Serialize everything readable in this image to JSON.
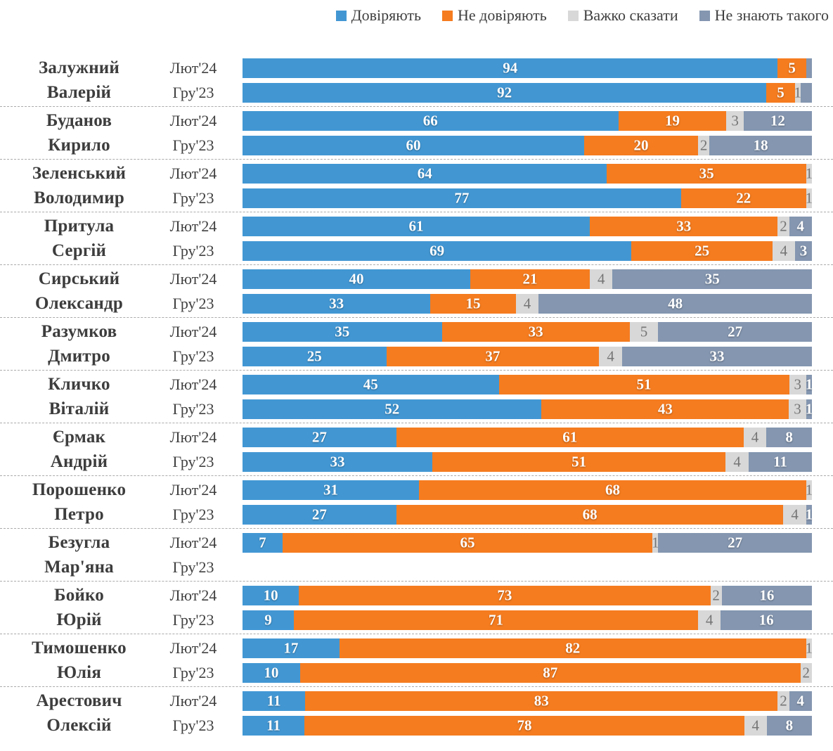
{
  "legend": {
    "items": [
      {
        "key": "trust",
        "label": "Довіряють",
        "color": "#4297d3"
      },
      {
        "key": "distrust",
        "label": "Не довіряють",
        "color": "#f57c1f"
      },
      {
        "key": "hard-to-say",
        "label": "Важко сказати",
        "color": "#d8d8d8"
      },
      {
        "key": "dont-know",
        "label": "Не знають такого",
        "color": "#8496b0"
      }
    ],
    "position": "top-right"
  },
  "periods": [
    "Лют'24",
    "Гру'23"
  ],
  "chart_data": {
    "type": "bar",
    "orientation": "horizontal",
    "stacked": true,
    "percent_stacked": true,
    "xlim": [
      0,
      100
    ],
    "grid": false,
    "series_names": [
      "Довіряють",
      "Не довіряють",
      "Важко сказати",
      "Не знають такого"
    ],
    "series_colors": [
      "#4297d3",
      "#f57c1f",
      "#d8d8d8",
      "#8496b0"
    ],
    "label_color_on_gray": "#757575",
    "people": [
      {
        "surname": "Залужний",
        "firstname": "Валерій",
        "rows": [
          {
            "period": "Лют'24",
            "values": [
              94,
              5,
              0,
              1
            ],
            "labels": [
              "94",
              "5",
              "",
              ""
            ]
          },
          {
            "period": "Гру'23",
            "values": [
              92,
              5,
              1,
              2
            ],
            "labels": [
              "92",
              "5",
              "1",
              ""
            ]
          }
        ]
      },
      {
        "surname": "Буданов",
        "firstname": "Кирило",
        "rows": [
          {
            "period": "Лют'24",
            "values": [
              66,
              19,
              3,
              12
            ],
            "labels": [
              "66",
              "19",
              "3",
              "12"
            ]
          },
          {
            "period": "Гру'23",
            "values": [
              60,
              20,
              2,
              18
            ],
            "labels": [
              "60",
              "20",
              "2",
              "18"
            ]
          }
        ]
      },
      {
        "surname": "Зеленський",
        "firstname": "Володимир",
        "rows": [
          {
            "period": "Лют'24",
            "values": [
              64,
              35,
              1,
              0
            ],
            "labels": [
              "64",
              "35",
              "1",
              ""
            ]
          },
          {
            "period": "Гру'23",
            "values": [
              77,
              22,
              1,
              0
            ],
            "labels": [
              "77",
              "22",
              "1",
              ""
            ]
          }
        ]
      },
      {
        "surname": "Притула",
        "firstname": "Сергій",
        "rows": [
          {
            "period": "Лют'24",
            "values": [
              61,
              33,
              2,
              4
            ],
            "labels": [
              "61",
              "33",
              "2",
              "4"
            ]
          },
          {
            "period": "Гру'23",
            "values": [
              69,
              25,
              4,
              3
            ],
            "labels": [
              "69",
              "25",
              "4",
              "3"
            ]
          }
        ]
      },
      {
        "surname": "Сирський",
        "firstname": "Олександр",
        "rows": [
          {
            "period": "Лют'24",
            "values": [
              40,
              21,
              4,
              35
            ],
            "labels": [
              "40",
              "21",
              "4",
              "35"
            ]
          },
          {
            "period": "Гру'23",
            "values": [
              33,
              15,
              4,
              48
            ],
            "labels": [
              "33",
              "15",
              "4",
              "48"
            ]
          }
        ]
      },
      {
        "surname": "Разумков",
        "firstname": "Дмитро",
        "rows": [
          {
            "period": "Лют'24",
            "values": [
              35,
              33,
              5,
              27
            ],
            "labels": [
              "35",
              "33",
              "5",
              "27"
            ]
          },
          {
            "period": "Гру'23",
            "values": [
              25,
              37,
              4,
              33
            ],
            "labels": [
              "25",
              "37",
              "4",
              "33"
            ]
          }
        ]
      },
      {
        "surname": "Кличко",
        "firstname": "Віталій",
        "rows": [
          {
            "period": "Лют'24",
            "values": [
              45,
              51,
              3,
              1
            ],
            "labels": [
              "45",
              "51",
              "3",
              "1"
            ]
          },
          {
            "period": "Гру'23",
            "values": [
              52,
              43,
              3,
              1
            ],
            "labels": [
              "52",
              "43",
              "3",
              "1"
            ]
          }
        ]
      },
      {
        "surname": "Єрмак",
        "firstname": "Андрій",
        "rows": [
          {
            "period": "Лют'24",
            "values": [
              27,
              61,
              4,
              8
            ],
            "labels": [
              "27",
              "61",
              "4",
              "8"
            ]
          },
          {
            "period": "Гру'23",
            "values": [
              33,
              51,
              4,
              11
            ],
            "labels": [
              "33",
              "51",
              "4",
              "11"
            ]
          }
        ]
      },
      {
        "surname": "Порошенко",
        "firstname": "Петро",
        "rows": [
          {
            "period": "Лют'24",
            "values": [
              31,
              68,
              1,
              0
            ],
            "labels": [
              "31",
              "68",
              "1",
              ""
            ]
          },
          {
            "period": "Гру'23",
            "values": [
              27,
              68,
              4,
              1
            ],
            "labels": [
              "27",
              "68",
              "4",
              "1"
            ]
          }
        ]
      },
      {
        "surname": "Безугла",
        "firstname": "Мар'яна",
        "rows": [
          {
            "period": "Лют'24",
            "values": [
              7,
              65,
              1,
              27
            ],
            "labels": [
              "7",
              "65",
              "1",
              "27"
            ]
          },
          {
            "period": "Гру'23",
            "values": null,
            "labels": null
          }
        ]
      },
      {
        "surname": "Бойко",
        "firstname": "Юрій",
        "rows": [
          {
            "period": "Лют'24",
            "values": [
              10,
              73,
              2,
              16
            ],
            "labels": [
              "10",
              "73",
              "2",
              "16"
            ]
          },
          {
            "period": "Гру'23",
            "values": [
              9,
              71,
              4,
              16
            ],
            "labels": [
              "9",
              "71",
              "4",
              "16"
            ]
          }
        ]
      },
      {
        "surname": "Тимошенко",
        "firstname": "Юлія",
        "rows": [
          {
            "period": "Лют'24",
            "values": [
              17,
              82,
              1,
              0
            ],
            "labels": [
              "17",
              "82",
              "1",
              ""
            ]
          },
          {
            "period": "Гру'23",
            "values": [
              10,
              87,
              2,
              0
            ],
            "labels": [
              "10",
              "87",
              "2",
              ""
            ]
          }
        ]
      },
      {
        "surname": "Арестович",
        "firstname": "Олексій",
        "rows": [
          {
            "period": "Лют'24",
            "values": [
              11,
              83,
              2,
              4
            ],
            "labels": [
              "11",
              "83",
              "2",
              "4"
            ]
          },
          {
            "period": "Гру'23",
            "values": [
              11,
              78,
              4,
              8
            ],
            "labels": [
              "11",
              "78",
              "4",
              "8"
            ]
          }
        ]
      }
    ]
  }
}
